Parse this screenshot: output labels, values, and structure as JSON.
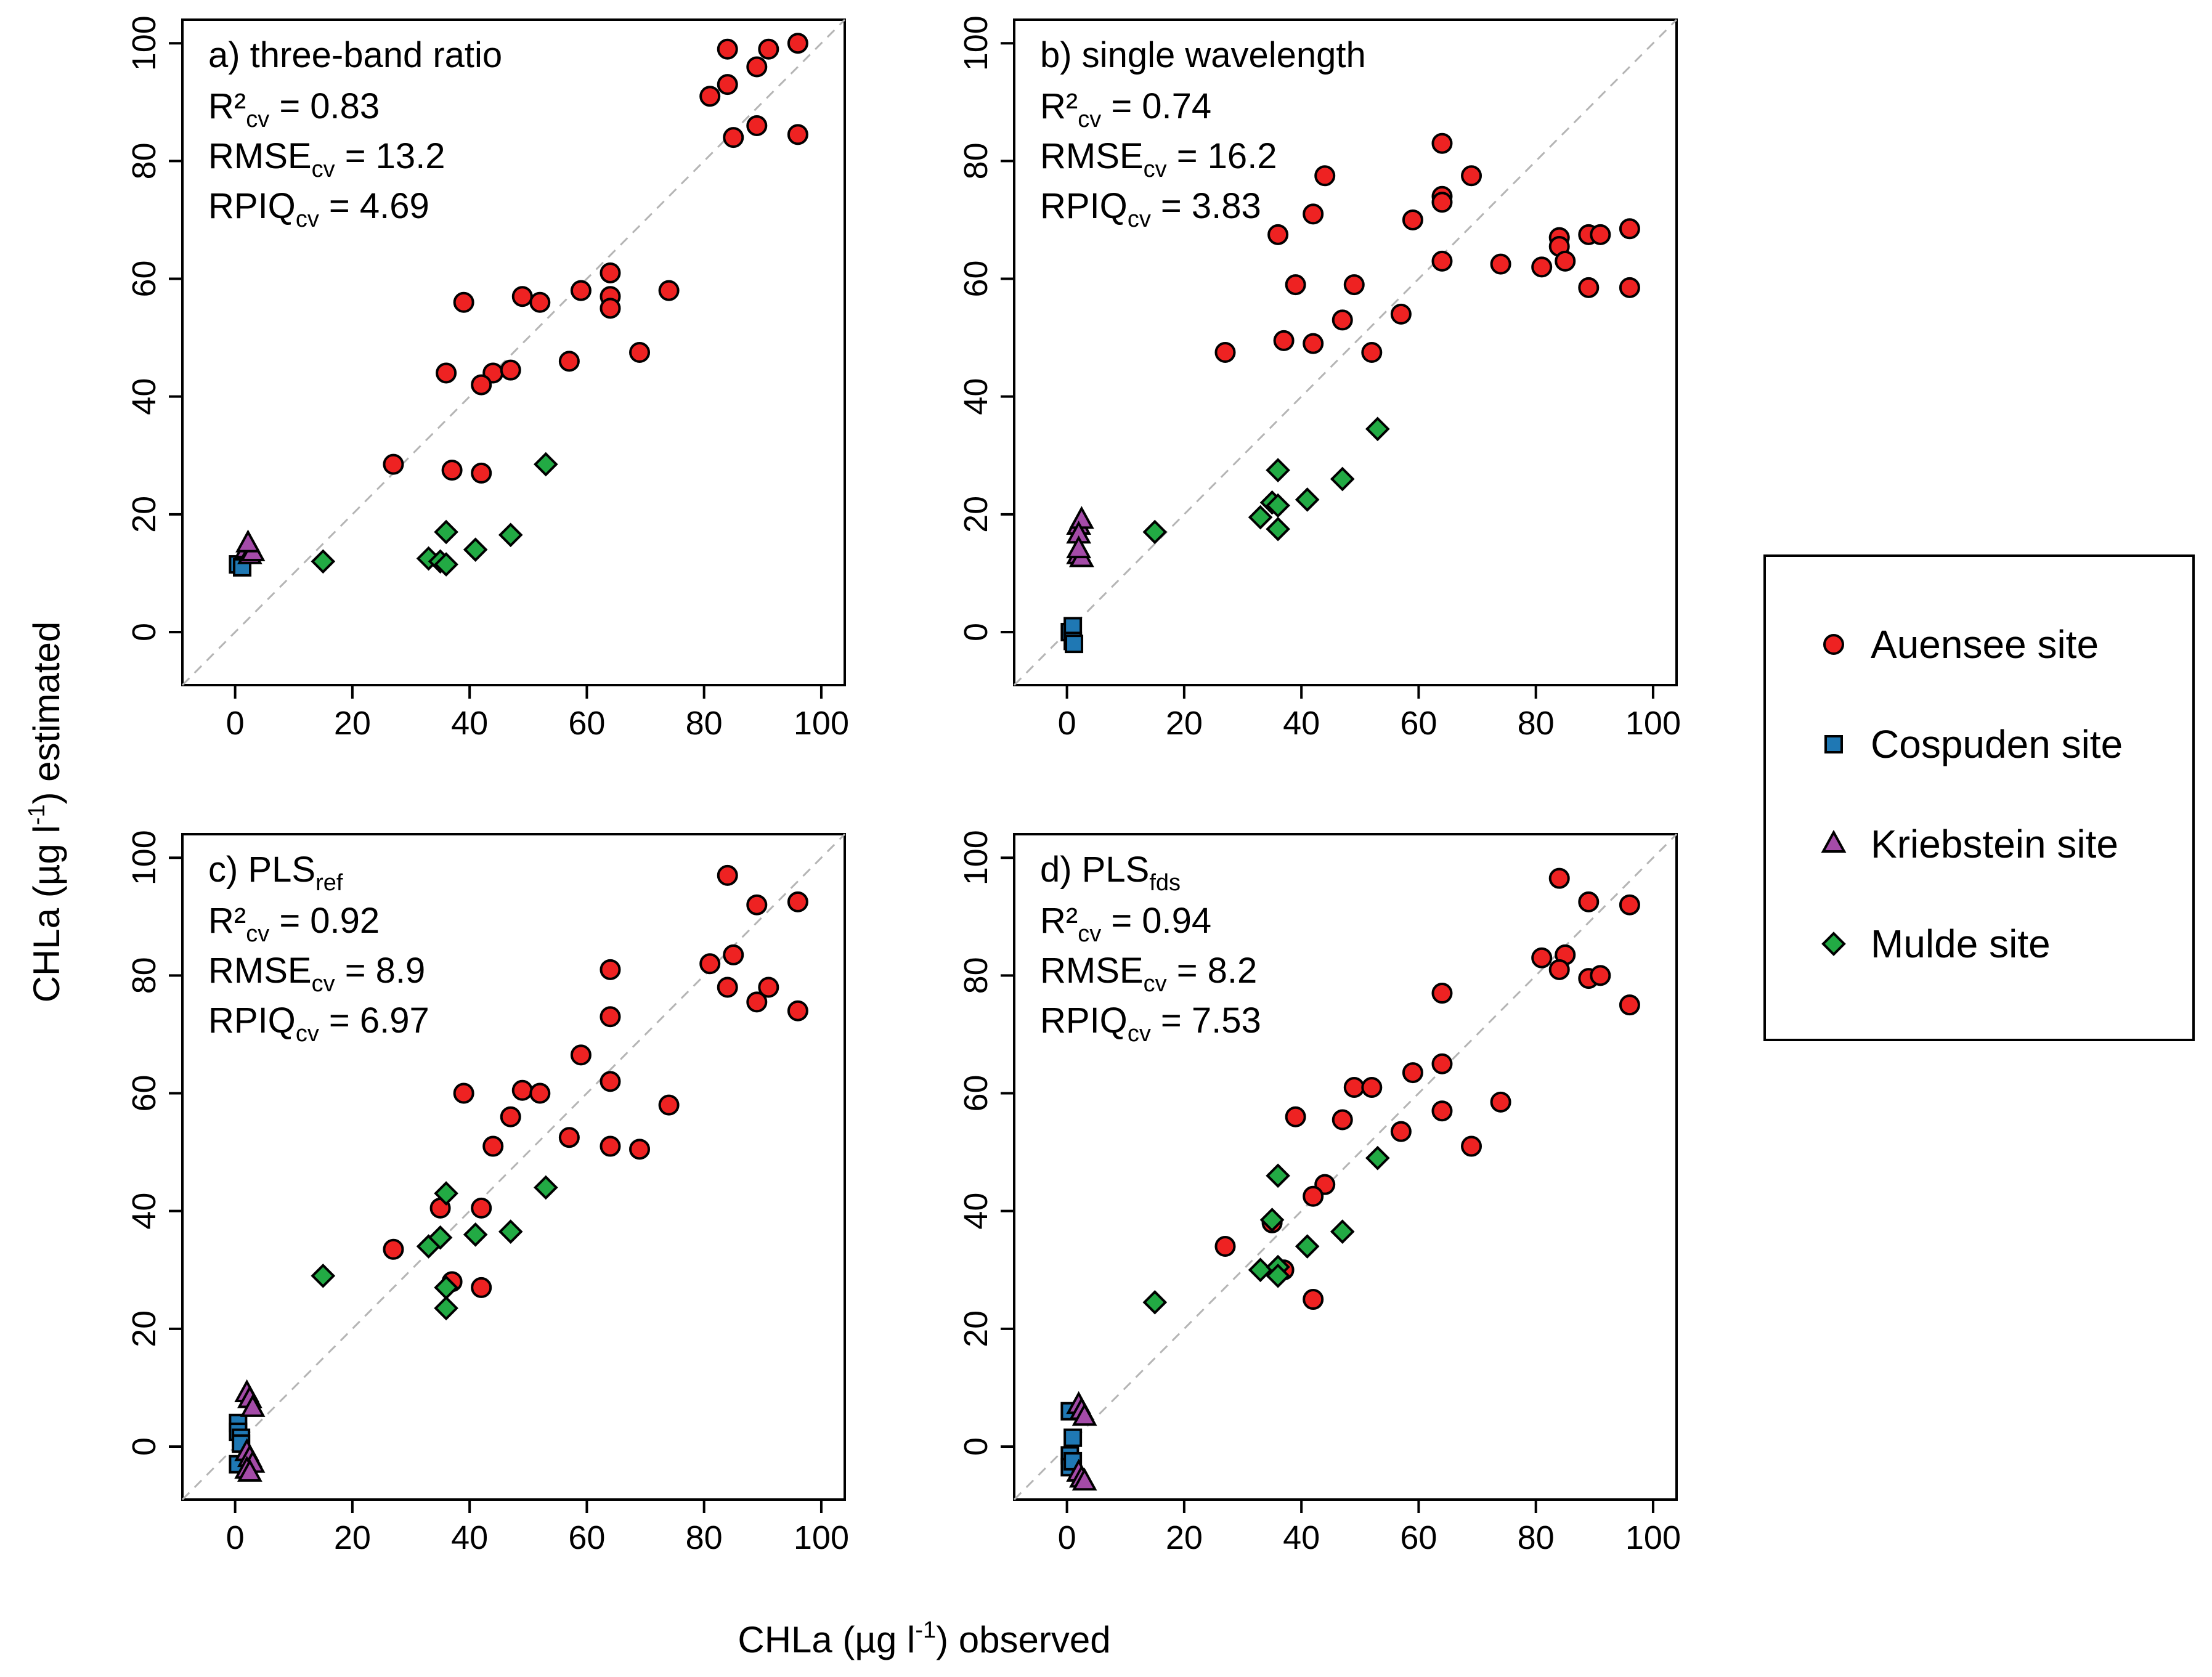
{
  "figure": {
    "xlabel": "CHLa (µg l-1) observed",
    "xlabel_main": "CHLa (µg l",
    "xlabel_sup": "-1",
    "xlabel_tail": ") observed",
    "ylabel": "CHLa (µg l-1) estimated",
    "ylabel_main": "CHLa (µg l",
    "ylabel_sup": "-1",
    "ylabel_tail": ") estimated"
  },
  "legend": [
    {
      "label": "Auensee site",
      "color": "#ee2222",
      "shape": "circle"
    },
    {
      "label": "Cospuden site",
      "color": "#1f78b4",
      "shape": "square"
    },
    {
      "label": "Kriebstein site",
      "color": "#a44ba8",
      "shape": "triangle"
    },
    {
      "label": "Mulde site",
      "color": "#22aa44",
      "shape": "diamond"
    }
  ],
  "chart_data": [
    {
      "type": "scatter",
      "title": "a) three-band ratio",
      "title_main": "a) three-band ratio",
      "title_sub": "",
      "stats": [
        {
          "main": "R²",
          "sub": "cv",
          "value": " = 0.83"
        },
        {
          "main": "RMSE",
          "sub": "cv",
          "value": " = 13.2"
        },
        {
          "main": "RPIQ",
          "sub": "cv",
          "value": " = 4.69"
        }
      ],
      "xlim": [
        -9,
        104
      ],
      "ylim": [
        -9,
        104
      ],
      "xticks": [
        0,
        20,
        40,
        60,
        80,
        100
      ],
      "yticks": [
        0,
        20,
        40,
        60,
        80,
        100
      ],
      "identity_line": true,
      "series": [
        {
          "name": "Auensee site",
          "points": [
            [
              84,
              99
            ],
            [
              91,
              99
            ],
            [
              96,
              100
            ],
            [
              89,
              96
            ],
            [
              84,
              93
            ],
            [
              81,
              91
            ],
            [
              89,
              86
            ],
            [
              85,
              84
            ],
            [
              96,
              84.5
            ],
            [
              64,
              61
            ],
            [
              59,
              58
            ],
            [
              74,
              58
            ],
            [
              49,
              57
            ],
            [
              52,
              56
            ],
            [
              39,
              56
            ],
            [
              64,
              57
            ],
            [
              64,
              55
            ],
            [
              57,
              46
            ],
            [
              69,
              47.5
            ],
            [
              36,
              44
            ],
            [
              44,
              44
            ],
            [
              47,
              44.5
            ],
            [
              42,
              42
            ],
            [
              27,
              28.5
            ],
            [
              37,
              27.5
            ],
            [
              42,
              27
            ]
          ]
        },
        {
          "name": "Cospuden site",
          "points": [
            [
              0.5,
              11.5
            ],
            [
              1.2,
              11
            ]
          ]
        },
        {
          "name": "Kriebstein site",
          "points": [
            [
              2,
              14
            ],
            [
              2.5,
              13
            ],
            [
              3,
              13.5
            ],
            [
              2.2,
              15
            ]
          ]
        },
        {
          "name": "Mulde site",
          "points": [
            [
              15,
              12
            ],
            [
              33,
              12.5
            ],
            [
              35,
              12
            ],
            [
              36,
              17
            ],
            [
              36,
              11.5
            ],
            [
              41,
              14
            ],
            [
              47,
              16.5
            ],
            [
              53,
              28.5
            ]
          ]
        }
      ]
    },
    {
      "type": "scatter",
      "title": "b) single wavelength",
      "title_main": "b) single wavelength",
      "title_sub": "",
      "stats": [
        {
          "main": "R²",
          "sub": "cv",
          "value": " = 0.74"
        },
        {
          "main": "RMSE",
          "sub": "cv",
          "value": " = 16.2"
        },
        {
          "main": "RPIQ",
          "sub": "cv",
          "value": " = 3.83"
        }
      ],
      "xlim": [
        -9,
        104
      ],
      "ylim": [
        -9,
        104
      ],
      "xticks": [
        0,
        20,
        40,
        60,
        80,
        100
      ],
      "yticks": [
        0,
        20,
        40,
        60,
        80,
        100
      ],
      "identity_line": true,
      "series": [
        {
          "name": "Auensee site",
          "points": [
            [
              64,
              83
            ],
            [
              44,
              77.5
            ],
            [
              69,
              77.5
            ],
            [
              64,
              74
            ],
            [
              64,
              73
            ],
            [
              42,
              71
            ],
            [
              59,
              70
            ],
            [
              36,
              67.5
            ],
            [
              84,
              67
            ],
            [
              89,
              67.5
            ],
            [
              91,
              67.5
            ],
            [
              96,
              68.5
            ],
            [
              84,
              65.5
            ],
            [
              74,
              62.5
            ],
            [
              81,
              62
            ],
            [
              85,
              63
            ],
            [
              64,
              63
            ],
            [
              39,
              59
            ],
            [
              49,
              59
            ],
            [
              89,
              58.5
            ],
            [
              96,
              58.5
            ],
            [
              57,
              54
            ],
            [
              47,
              53
            ],
            [
              37,
              49.5
            ],
            [
              42,
              49
            ],
            [
              52,
              47.5
            ],
            [
              27,
              47.5
            ]
          ]
        },
        {
          "name": "Cospuden site",
          "points": [
            [
              0.5,
              0
            ],
            [
              1,
              1
            ],
            [
              1,
              -1.5
            ],
            [
              1.2,
              -2
            ]
          ]
        },
        {
          "name": "Kriebstein site",
          "points": [
            [
              2,
              18
            ],
            [
              2.5,
              19
            ],
            [
              2,
              16.5
            ],
            [
              2,
              13
            ],
            [
              2.5,
              12.5
            ],
            [
              2,
              14
            ]
          ]
        },
        {
          "name": "Mulde site",
          "points": [
            [
              15,
              17
            ],
            [
              33,
              19.5
            ],
            [
              35,
              22
            ],
            [
              36,
              21.5
            ],
            [
              36,
              27.5
            ],
            [
              36,
              17.5
            ],
            [
              41,
              22.5
            ],
            [
              47,
              26
            ],
            [
              53,
              34.5
            ]
          ]
        }
      ]
    },
    {
      "type": "scatter",
      "title": "c) PLSref",
      "title_main": "c) PLS",
      "title_sub": "ref",
      "stats": [
        {
          "main": "R²",
          "sub": "cv",
          "value": " = 0.92"
        },
        {
          "main": "RMSE",
          "sub": "cv",
          "value": " = 8.9"
        },
        {
          "main": "RPIQ",
          "sub": "cv",
          "value": " = 6.97"
        }
      ],
      "xlim": [
        -9,
        104
      ],
      "ylim": [
        -9,
        104
      ],
      "xticks": [
        0,
        20,
        40,
        60,
        80,
        100
      ],
      "yticks": [
        0,
        20,
        40,
        60,
        80,
        100
      ],
      "identity_line": true,
      "series": [
        {
          "name": "Auensee site",
          "points": [
            [
              84,
              97
            ],
            [
              89,
              92
            ],
            [
              96,
              92.5
            ],
            [
              85,
              83.5
            ],
            [
              81,
              82
            ],
            [
              64,
              81
            ],
            [
              84,
              78
            ],
            [
              91,
              78
            ],
            [
              89,
              75.5
            ],
            [
              96,
              74
            ],
            [
              64,
              73
            ],
            [
              59,
              66.5
            ],
            [
              64,
              62
            ],
            [
              49,
              60.5
            ],
            [
              52,
              60
            ],
            [
              39,
              60
            ],
            [
              74,
              58
            ],
            [
              47,
              56
            ],
            [
              57,
              52.5
            ],
            [
              44,
              51
            ],
            [
              64,
              51
            ],
            [
              69,
              50.5
            ],
            [
              35,
              40.5
            ],
            [
              42,
              40.5
            ],
            [
              27,
              33.5
            ],
            [
              37,
              28
            ],
            [
              42,
              27
            ]
          ]
        },
        {
          "name": "Cospuden site",
          "points": [
            [
              0.5,
              4
            ],
            [
              0.5,
              2.5
            ],
            [
              1,
              1.5
            ],
            [
              0.5,
              -3
            ],
            [
              1,
              0.5
            ]
          ]
        },
        {
          "name": "Kriebstein site",
          "points": [
            [
              2,
              9
            ],
            [
              2.5,
              8
            ],
            [
              3,
              6.5
            ],
            [
              2,
              -1
            ],
            [
              2.5,
              -2
            ],
            [
              3,
              -3
            ],
            [
              2,
              -4
            ],
            [
              2.5,
              -4.5
            ]
          ]
        },
        {
          "name": "Mulde site",
          "points": [
            [
              15,
              29
            ],
            [
              33,
              34
            ],
            [
              35,
              35.5
            ],
            [
              36,
              43
            ],
            [
              36,
              27
            ],
            [
              36,
              23.5
            ],
            [
              41,
              36
            ],
            [
              47,
              36.5
            ],
            [
              53,
              44
            ]
          ]
        }
      ]
    },
    {
      "type": "scatter",
      "title": "d) PLSfds",
      "title_main": "d) PLS",
      "title_sub": "fds",
      "stats": [
        {
          "main": "R²",
          "sub": "cv",
          "value": " = 0.94"
        },
        {
          "main": "RMSE",
          "sub": "cv",
          "value": " = 8.2"
        },
        {
          "main": "RPIQ",
          "sub": "cv",
          "value": " = 7.53"
        }
      ],
      "xlim": [
        -9,
        104
      ],
      "ylim": [
        -9,
        104
      ],
      "xticks": [
        0,
        20,
        40,
        60,
        80,
        100
      ],
      "yticks": [
        0,
        20,
        40,
        60,
        80,
        100
      ],
      "identity_line": true,
      "series": [
        {
          "name": "Auensee site",
          "points": [
            [
              84,
              96.5
            ],
            [
              89,
              92.5
            ],
            [
              96,
              92
            ],
            [
              85,
              83.5
            ],
            [
              81,
              83
            ],
            [
              84,
              81
            ],
            [
              89,
              79.5
            ],
            [
              91,
              80
            ],
            [
              64,
              77
            ],
            [
              96,
              75
            ],
            [
              59,
              63.5
            ],
            [
              64,
              65
            ],
            [
              49,
              61
            ],
            [
              52,
              61
            ],
            [
              74,
              58.5
            ],
            [
              64,
              57
            ],
            [
              39,
              56
            ],
            [
              47,
              55.5
            ],
            [
              57,
              53.5
            ],
            [
              69,
              51
            ],
            [
              44,
              44.5
            ],
            [
              42,
              42.5
            ],
            [
              35,
              38
            ],
            [
              27,
              34
            ],
            [
              37,
              30
            ],
            [
              42,
              25
            ]
          ]
        },
        {
          "name": "Cospuden site",
          "points": [
            [
              0.5,
              6
            ],
            [
              1,
              1.5
            ],
            [
              0.5,
              -1.5
            ],
            [
              0.5,
              -3.5
            ],
            [
              1,
              -2.5
            ]
          ]
        },
        {
          "name": "Kriebstein site",
          "points": [
            [
              2,
              7
            ],
            [
              2.5,
              6
            ],
            [
              3,
              5
            ],
            [
              2,
              -4.5
            ],
            [
              2.5,
              -5.5
            ],
            [
              3,
              -6
            ]
          ]
        },
        {
          "name": "Mulde site",
          "points": [
            [
              15,
              24.5
            ],
            [
              33,
              30
            ],
            [
              35,
              38.5
            ],
            [
              36,
              46
            ],
            [
              36,
              30.5
            ],
            [
              36,
              29
            ],
            [
              41,
              34
            ],
            [
              47,
              36.5
            ],
            [
              53,
              49
            ]
          ]
        }
      ]
    }
  ]
}
